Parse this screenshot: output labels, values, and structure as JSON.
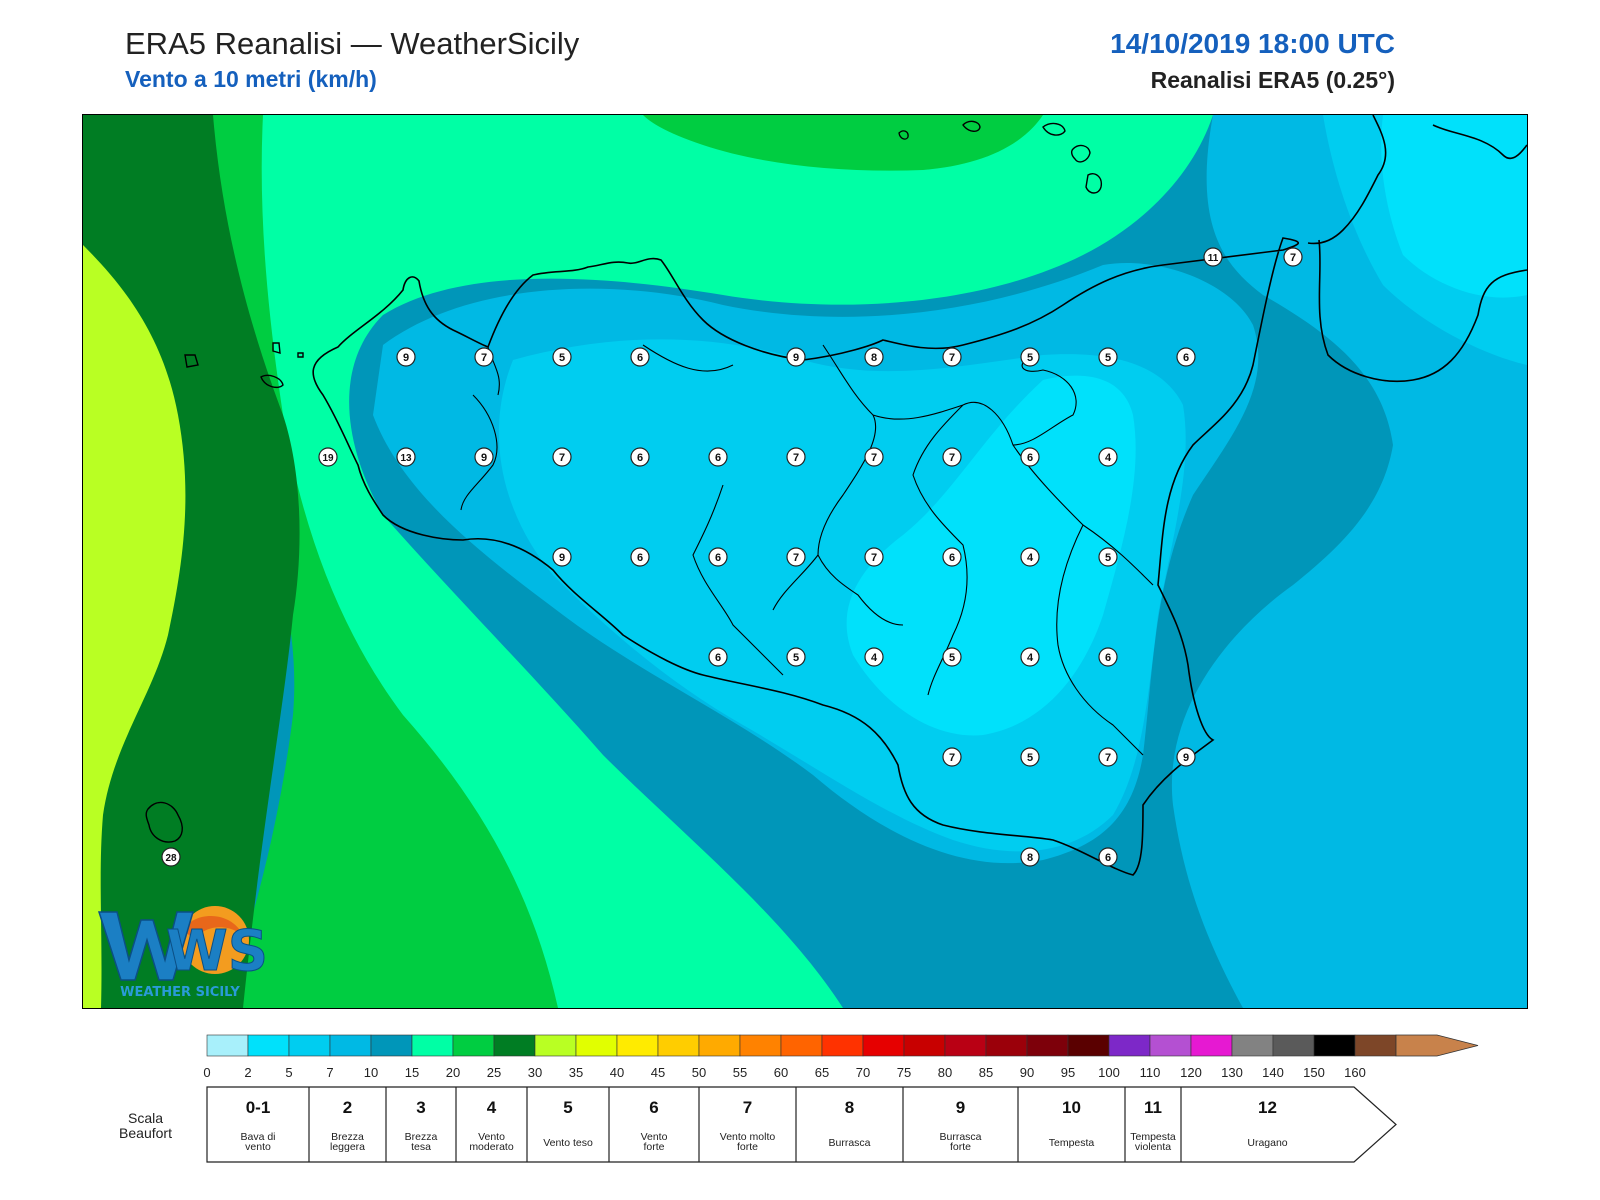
{
  "header": {
    "title": "ERA5 Reanalisi — WeatherSicily",
    "subtitle": "Vento a 10 metri (km/h)",
    "datetime": "14/10/2019 18:00 UTC",
    "source": "Reanalisi ERA5 (0.25°)"
  },
  "logo": {
    "letters": "WS",
    "text": "WEATHER SICILY"
  },
  "colorbar": {
    "ticks": [
      "0",
      "2",
      "5",
      "7",
      "10",
      "15",
      "20",
      "25",
      "30",
      "35",
      "40",
      "45",
      "50",
      "55",
      "60",
      "65",
      "70",
      "75",
      "80",
      "85",
      "90",
      "95",
      "100",
      "110",
      "120",
      "130",
      "140",
      "150",
      "160"
    ],
    "colors": [
      "#a8f0fb",
      "#00e1fb",
      "#00cdf0",
      "#00b9e4",
      "#0096b9",
      "#00ffa5",
      "#00cd41",
      "#007d23",
      "#b9ff23",
      "#e1ff00",
      "#ffeb00",
      "#ffcd00",
      "#ffaa00",
      "#ff8200",
      "#ff6400",
      "#ff3200",
      "#e60000",
      "#c80000",
      "#b90014",
      "#9b000a",
      "#7d000a",
      "#5a0000",
      "#7d28c8",
      "#b450d2",
      "#e619d2",
      "#828282",
      "#5a5a5a",
      "#000000",
      "#7d4628",
      "#c8824b"
    ]
  },
  "beaufort": {
    "title_line1": "Scala",
    "title_line2": "Beaufort",
    "classes": [
      {
        "num": "0-1",
        "desc": [
          "Bava di",
          "vento"
        ]
      },
      {
        "num": "2",
        "desc": [
          "Brezza",
          "leggera"
        ]
      },
      {
        "num": "3",
        "desc": [
          "Brezza",
          "tesa"
        ]
      },
      {
        "num": "4",
        "desc": [
          "Vento",
          "moderato"
        ]
      },
      {
        "num": "5",
        "desc": [
          "Vento teso"
        ]
      },
      {
        "num": "6",
        "desc": [
          "Vento",
          "forte"
        ]
      },
      {
        "num": "7",
        "desc": [
          "Vento molto",
          "forte"
        ]
      },
      {
        "num": "8",
        "desc": [
          "Burrasca"
        ]
      },
      {
        "num": "9",
        "desc": [
          "Burrasca",
          "forte"
        ]
      },
      {
        "num": "10",
        "desc": [
          "Tempesta"
        ]
      },
      {
        "num": "11",
        "desc": [
          "Tempesta",
          "violenta"
        ]
      },
      {
        "num": "12",
        "desc": [
          "Uragano"
        ]
      }
    ]
  },
  "wind_values": [
    {
      "v": "11"
    },
    {
      "v": "7"
    },
    {
      "v": "9"
    },
    {
      "v": "7"
    },
    {
      "v": "5"
    },
    {
      "v": "6"
    },
    {
      "v": "9"
    },
    {
      "v": "8"
    },
    {
      "v": "7"
    },
    {
      "v": "5"
    },
    {
      "v": "5"
    },
    {
      "v": "6"
    },
    {
      "v": "19"
    },
    {
      "v": "13"
    },
    {
      "v": "9"
    },
    {
      "v": "7"
    },
    {
      "v": "6"
    },
    {
      "v": "6"
    },
    {
      "v": "7"
    },
    {
      "v": "7"
    },
    {
      "v": "7"
    },
    {
      "v": "6"
    },
    {
      "v": "4"
    },
    {
      "v": "9"
    },
    {
      "v": "6"
    },
    {
      "v": "6"
    },
    {
      "v": "7"
    },
    {
      "v": "7"
    },
    {
      "v": "6"
    },
    {
      "v": "4"
    },
    {
      "v": "5"
    },
    {
      "v": "6"
    },
    {
      "v": "5"
    },
    {
      "v": "4"
    },
    {
      "v": "5"
    },
    {
      "v": "4"
    },
    {
      "v": "6"
    },
    {
      "v": "7"
    },
    {
      "v": "5"
    },
    {
      "v": "7"
    },
    {
      "v": "9"
    },
    {
      "v": "8"
    },
    {
      "v": "6"
    },
    {
      "v": "28"
    }
  ]
}
